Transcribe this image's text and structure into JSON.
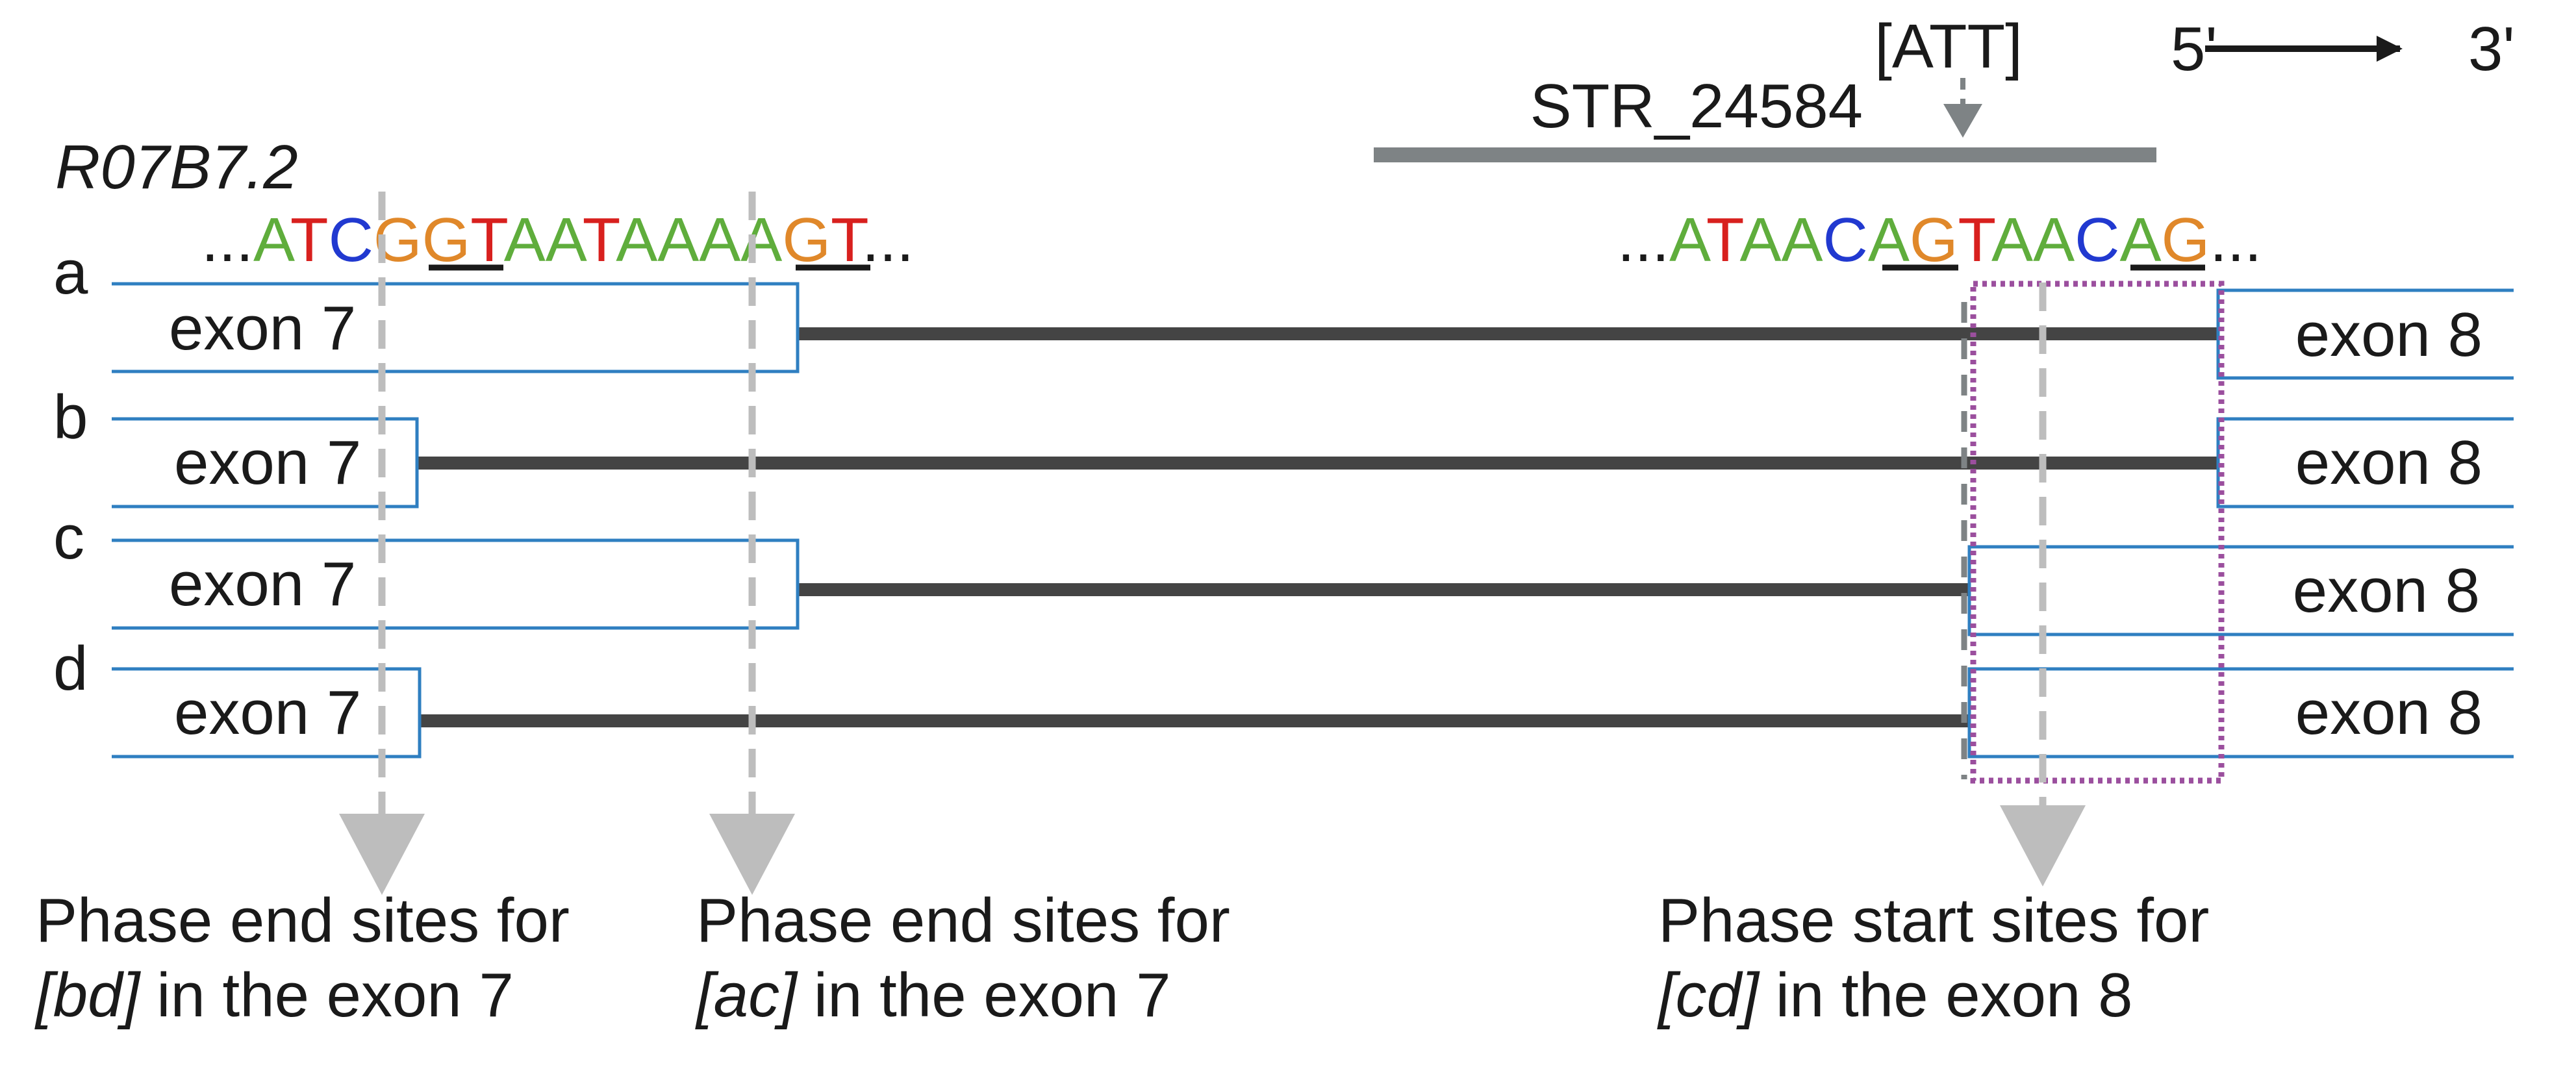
{
  "gene_name": "R07B7.2",
  "repeat_label": "STR_24584",
  "repeat_motif": "[ATT]",
  "direction": {
    "five_prime": "5'",
    "three_prime": "3'"
  },
  "colors": {
    "A": "#5fad3c",
    "T": "#d8201e",
    "C": "#2139d0",
    "G": "#e0882a",
    "exon_outline": "#2f7fc1",
    "intron": "#444444",
    "repeat_bar": "#7e8385",
    "guide": "#bdbdbd",
    "highlight_box": "#9b4f9e"
  },
  "sequence_left": {
    "prefix": "...",
    "bases": "ATCGGTAATAAAAGT",
    "suffix": "..."
  },
  "sequence_right": {
    "prefix": "...",
    "bases": "ATAACAGTAACAG",
    "suffix": "..."
  },
  "rows": [
    {
      "label": "a",
      "exon7": "exon 7",
      "exon8": "exon 8"
    },
    {
      "label": "b",
      "exon7": "exon 7",
      "exon8": "exon 8"
    },
    {
      "label": "c",
      "exon7": "exon 7",
      "exon8": "exon 8"
    },
    {
      "label": "d",
      "exon7": "exon 7",
      "exon8": "exon 8"
    }
  ],
  "captions": [
    {
      "line1": "Phase end sites for",
      "group": "[bd]",
      "rest": "in the exon 7"
    },
    {
      "line1": "Phase end sites for",
      "group": "[ac]",
      "rest": "in the exon 7"
    },
    {
      "line1": "Phase start sites for",
      "group": "[cd]",
      "rest": "in the exon 8"
    }
  ]
}
